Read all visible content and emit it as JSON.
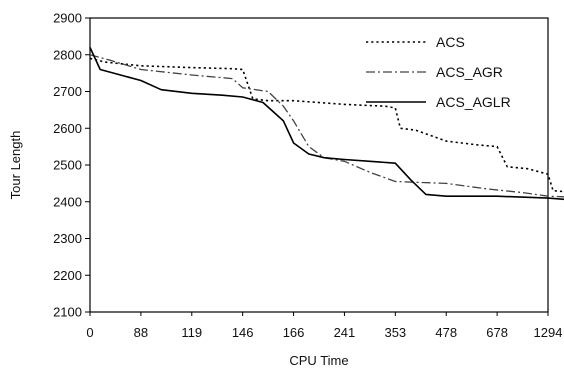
{
  "chart_data": {
    "type": "line",
    "title": "",
    "xlabel": "CPU Time",
    "ylabel": "Tour Length",
    "x_tick_labels": [
      "0",
      "88",
      "119",
      "146",
      "166",
      "241",
      "353",
      "478",
      "678",
      "1294"
    ],
    "y_ticks": [
      2100,
      2200,
      2300,
      2400,
      2500,
      2600,
      2700,
      2800,
      2900
    ],
    "ylim": [
      2100,
      2900
    ],
    "x_scale": "categorical tick positions (non-linear)",
    "grid": false,
    "legend": "top-right",
    "series": [
      {
        "name": "ACS",
        "style": "dotted",
        "color": "#000000",
        "points": [
          [
            0,
            2790
          ],
          [
            0.3,
            2780
          ],
          [
            1.0,
            2770
          ],
          [
            2.0,
            2765
          ],
          [
            2.8,
            2762
          ],
          [
            3.0,
            2760
          ],
          [
            3.2,
            2680
          ],
          [
            3.5,
            2675
          ],
          [
            4.0,
            2675
          ],
          [
            5.0,
            2665
          ],
          [
            5.8,
            2660
          ],
          [
            6.0,
            2655
          ],
          [
            6.1,
            2600
          ],
          [
            6.4,
            2595
          ],
          [
            7.0,
            2565
          ],
          [
            7.6,
            2555
          ],
          [
            8.0,
            2550
          ],
          [
            8.2,
            2495
          ],
          [
            8.6,
            2490
          ],
          [
            9.0,
            2475
          ],
          [
            9.1,
            2430
          ],
          [
            10.0,
            2420
          ],
          [
            12.0,
            2415
          ]
        ]
      },
      {
        "name": "ACS_AGR",
        "style": "dash-dot",
        "color": "#444444",
        "points": [
          [
            0,
            2800
          ],
          [
            0.4,
            2785
          ],
          [
            1.0,
            2760
          ],
          [
            2.0,
            2745
          ],
          [
            2.8,
            2735
          ],
          [
            3.0,
            2710
          ],
          [
            3.5,
            2700
          ],
          [
            3.8,
            2660
          ],
          [
            4.0,
            2620
          ],
          [
            4.3,
            2550
          ],
          [
            4.6,
            2520
          ],
          [
            5.0,
            2510
          ],
          [
            5.5,
            2480
          ],
          [
            6.0,
            2455
          ],
          [
            7.0,
            2450
          ],
          [
            7.8,
            2435
          ],
          [
            8.5,
            2425
          ],
          [
            9.0,
            2415
          ],
          [
            10.0,
            2410
          ],
          [
            11.0,
            2405
          ],
          [
            12.0,
            2405
          ]
        ]
      },
      {
        "name": "ACS_AGLR",
        "style": "solid",
        "color": "#000000",
        "points": [
          [
            0,
            2820
          ],
          [
            0.2,
            2760
          ],
          [
            0.6,
            2745
          ],
          [
            1.0,
            2730
          ],
          [
            1.4,
            2705
          ],
          [
            2.0,
            2695
          ],
          [
            2.6,
            2690
          ],
          [
            3.0,
            2685
          ],
          [
            3.4,
            2670
          ],
          [
            3.8,
            2620
          ],
          [
            4.0,
            2560
          ],
          [
            4.3,
            2530
          ],
          [
            4.6,
            2520
          ],
          [
            5.0,
            2515
          ],
          [
            5.5,
            2510
          ],
          [
            6.0,
            2505
          ],
          [
            6.3,
            2460
          ],
          [
            6.6,
            2420
          ],
          [
            7.0,
            2415
          ],
          [
            8.0,
            2415
          ],
          [
            9.0,
            2410
          ],
          [
            10.0,
            2400
          ],
          [
            11.0,
            2395
          ],
          [
            11.3,
            2385
          ],
          [
            12.0,
            2380
          ]
        ]
      }
    ]
  }
}
